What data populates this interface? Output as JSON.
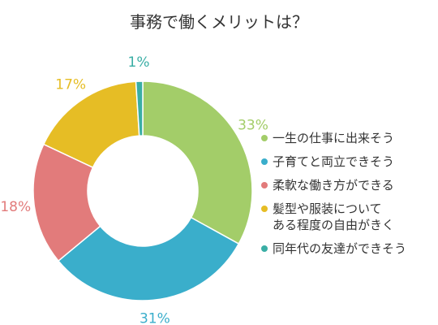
{
  "chart_data": {
    "type": "pie",
    "title": "事務で働くメリットは？",
    "categories": [
      "一生の仕事に出来そう",
      "子育てと両立できそう",
      "柔軟な働き方ができる",
      "髪型や服装について\nある程度の自由がきく",
      "同年代の友達ができそう"
    ],
    "values": [
      33,
      31,
      18,
      17,
      1
    ],
    "labels": [
      "33%",
      "31%",
      "18%",
      "17%",
      "1%"
    ],
    "colors": [
      "#a3cd69",
      "#3aaecb",
      "#e27b7b",
      "#e6bd25",
      "#3aaea5"
    ],
    "legend_position": "right"
  }
}
